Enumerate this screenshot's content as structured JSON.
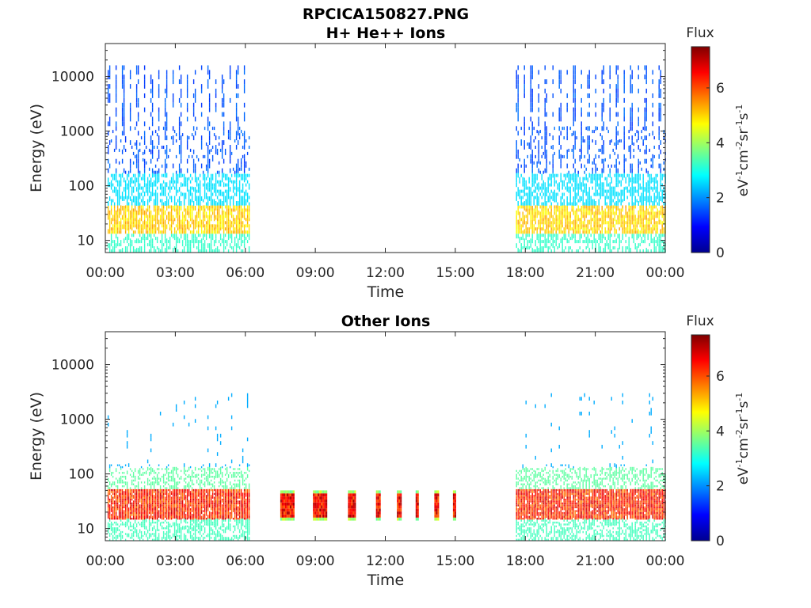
{
  "figure": {
    "filename_title": "RPCICA150827.PNG"
  },
  "chart_data": [
    {
      "type": "heatmap",
      "title": "H+ He++ Ions",
      "xlabel": "Time",
      "ylabel": "Energy (eV)",
      "y_scale": "log",
      "ylim": [
        6,
        40000
      ],
      "x_ticks": [
        "00:00",
        "03:00",
        "06:00",
        "09:00",
        "12:00",
        "15:00",
        "18:00",
        "21:00",
        "00:00"
      ],
      "y_ticks": [
        {
          "value": 10,
          "label": "10"
        },
        {
          "value": 100,
          "label": "100"
        },
        {
          "value": 1000,
          "label": "1000"
        },
        {
          "value": 10000,
          "label": "10000"
        }
      ],
      "colorbar": {
        "title": "Flux",
        "unit_label": "eV-1cm-2sr-1s-1",
        "range": [
          0,
          7.5
        ],
        "ticks": [
          "0",
          "2",
          "4",
          "6"
        ]
      },
      "activity_intervals_hours": [
        [
          0.1,
          6.2
        ],
        [
          17.6,
          24.0
        ]
      ],
      "bursts": []
    },
    {
      "type": "heatmap",
      "title": "Other Ions",
      "xlabel": "Time",
      "ylabel": "Energy (eV)",
      "y_scale": "log",
      "ylim": [
        6,
        40000
      ],
      "x_ticks": [
        "00:00",
        "03:00",
        "06:00",
        "09:00",
        "12:00",
        "15:00",
        "18:00",
        "21:00",
        "00:00"
      ],
      "y_ticks": [
        {
          "value": 10,
          "label": "10"
        },
        {
          "value": 100,
          "label": "100"
        },
        {
          "value": 1000,
          "label": "1000"
        },
        {
          "value": 10000,
          "label": "10000"
        }
      ],
      "colorbar": {
        "title": "Flux",
        "unit_label": "eV-1cm-2sr-1s-1",
        "range": [
          0,
          7.5
        ],
        "ticks": [
          "0",
          "2",
          "4",
          "6"
        ]
      },
      "activity_intervals_hours": [
        [
          0.1,
          6.2
        ],
        [
          17.6,
          24.0
        ]
      ],
      "bursts": [
        {
          "start_hour": 7.5,
          "end_hour": 8.1,
          "energy_range_ev": [
            14,
            50
          ]
        },
        {
          "start_hour": 8.9,
          "end_hour": 9.5,
          "energy_range_ev": [
            14,
            50
          ]
        },
        {
          "start_hour": 10.4,
          "end_hour": 10.7,
          "energy_range_ev": [
            14,
            50
          ]
        },
        {
          "start_hour": 11.6,
          "end_hour": 11.8,
          "energy_range_ev": [
            14,
            50
          ]
        },
        {
          "start_hour": 12.5,
          "end_hour": 12.7,
          "energy_range_ev": [
            14,
            50
          ]
        },
        {
          "start_hour": 13.3,
          "end_hour": 13.4,
          "energy_range_ev": [
            14,
            50
          ]
        },
        {
          "start_hour": 14.1,
          "end_hour": 14.3,
          "energy_range_ev": [
            14,
            50
          ]
        },
        {
          "start_hour": 14.9,
          "end_hour": 15.0,
          "energy_range_ev": [
            14,
            50
          ]
        }
      ]
    }
  ]
}
